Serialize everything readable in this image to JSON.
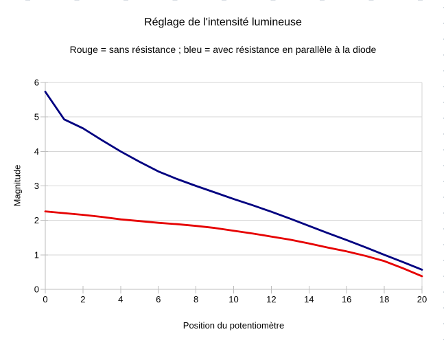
{
  "header": {
    "title": "Réglage de l'intensité lumineuse",
    "subtitle": "Rouge = sans résistance ; bleu = avec résistance en parallèle à la diode"
  },
  "chart_data": {
    "type": "line",
    "title": "Réglage de l'intensité lumineuse",
    "subtitle": "Rouge = sans résistance ; bleu = avec résistance en parallèle à la diode",
    "xlabel": "Position du potentiomètre",
    "ylabel": "Magnitude",
    "xlim": [
      0,
      20
    ],
    "ylim": [
      0,
      6
    ],
    "x_ticks": [
      0,
      2,
      4,
      6,
      8,
      10,
      12,
      14,
      16,
      18,
      20
    ],
    "y_ticks": [
      0,
      1,
      2,
      3,
      4,
      5,
      6
    ],
    "grid": "horizontal gridlines on, legend off (legend given in subtitle)",
    "x": [
      0,
      1,
      2,
      3,
      4,
      5,
      6,
      7,
      8,
      9,
      10,
      11,
      12,
      13,
      14,
      15,
      16,
      17,
      18,
      19,
      20
    ],
    "series": [
      {
        "name": "avec résistance en parallèle à la diode",
        "color": "#000080",
        "values": [
          5.73,
          4.93,
          4.67,
          4.33,
          4.0,
          3.7,
          3.42,
          3.2,
          3.0,
          2.81,
          2.62,
          2.44,
          2.25,
          2.05,
          1.84,
          1.63,
          1.43,
          1.22,
          1.0,
          0.79,
          0.57
        ]
      },
      {
        "name": "sans résistance",
        "color": "#e60000",
        "values": [
          2.26,
          2.21,
          2.16,
          2.1,
          2.03,
          1.98,
          1.93,
          1.89,
          1.84,
          1.78,
          1.7,
          1.62,
          1.53,
          1.44,
          1.33,
          1.21,
          1.1,
          0.97,
          0.82,
          0.61,
          0.38
        ]
      }
    ]
  },
  "colors": {
    "axis": "#bdbdbd",
    "gridline": "#d6d6d6",
    "blue_series": "#000080",
    "red_series": "#e60000",
    "background": "#ffffff",
    "text": "#000000"
  }
}
